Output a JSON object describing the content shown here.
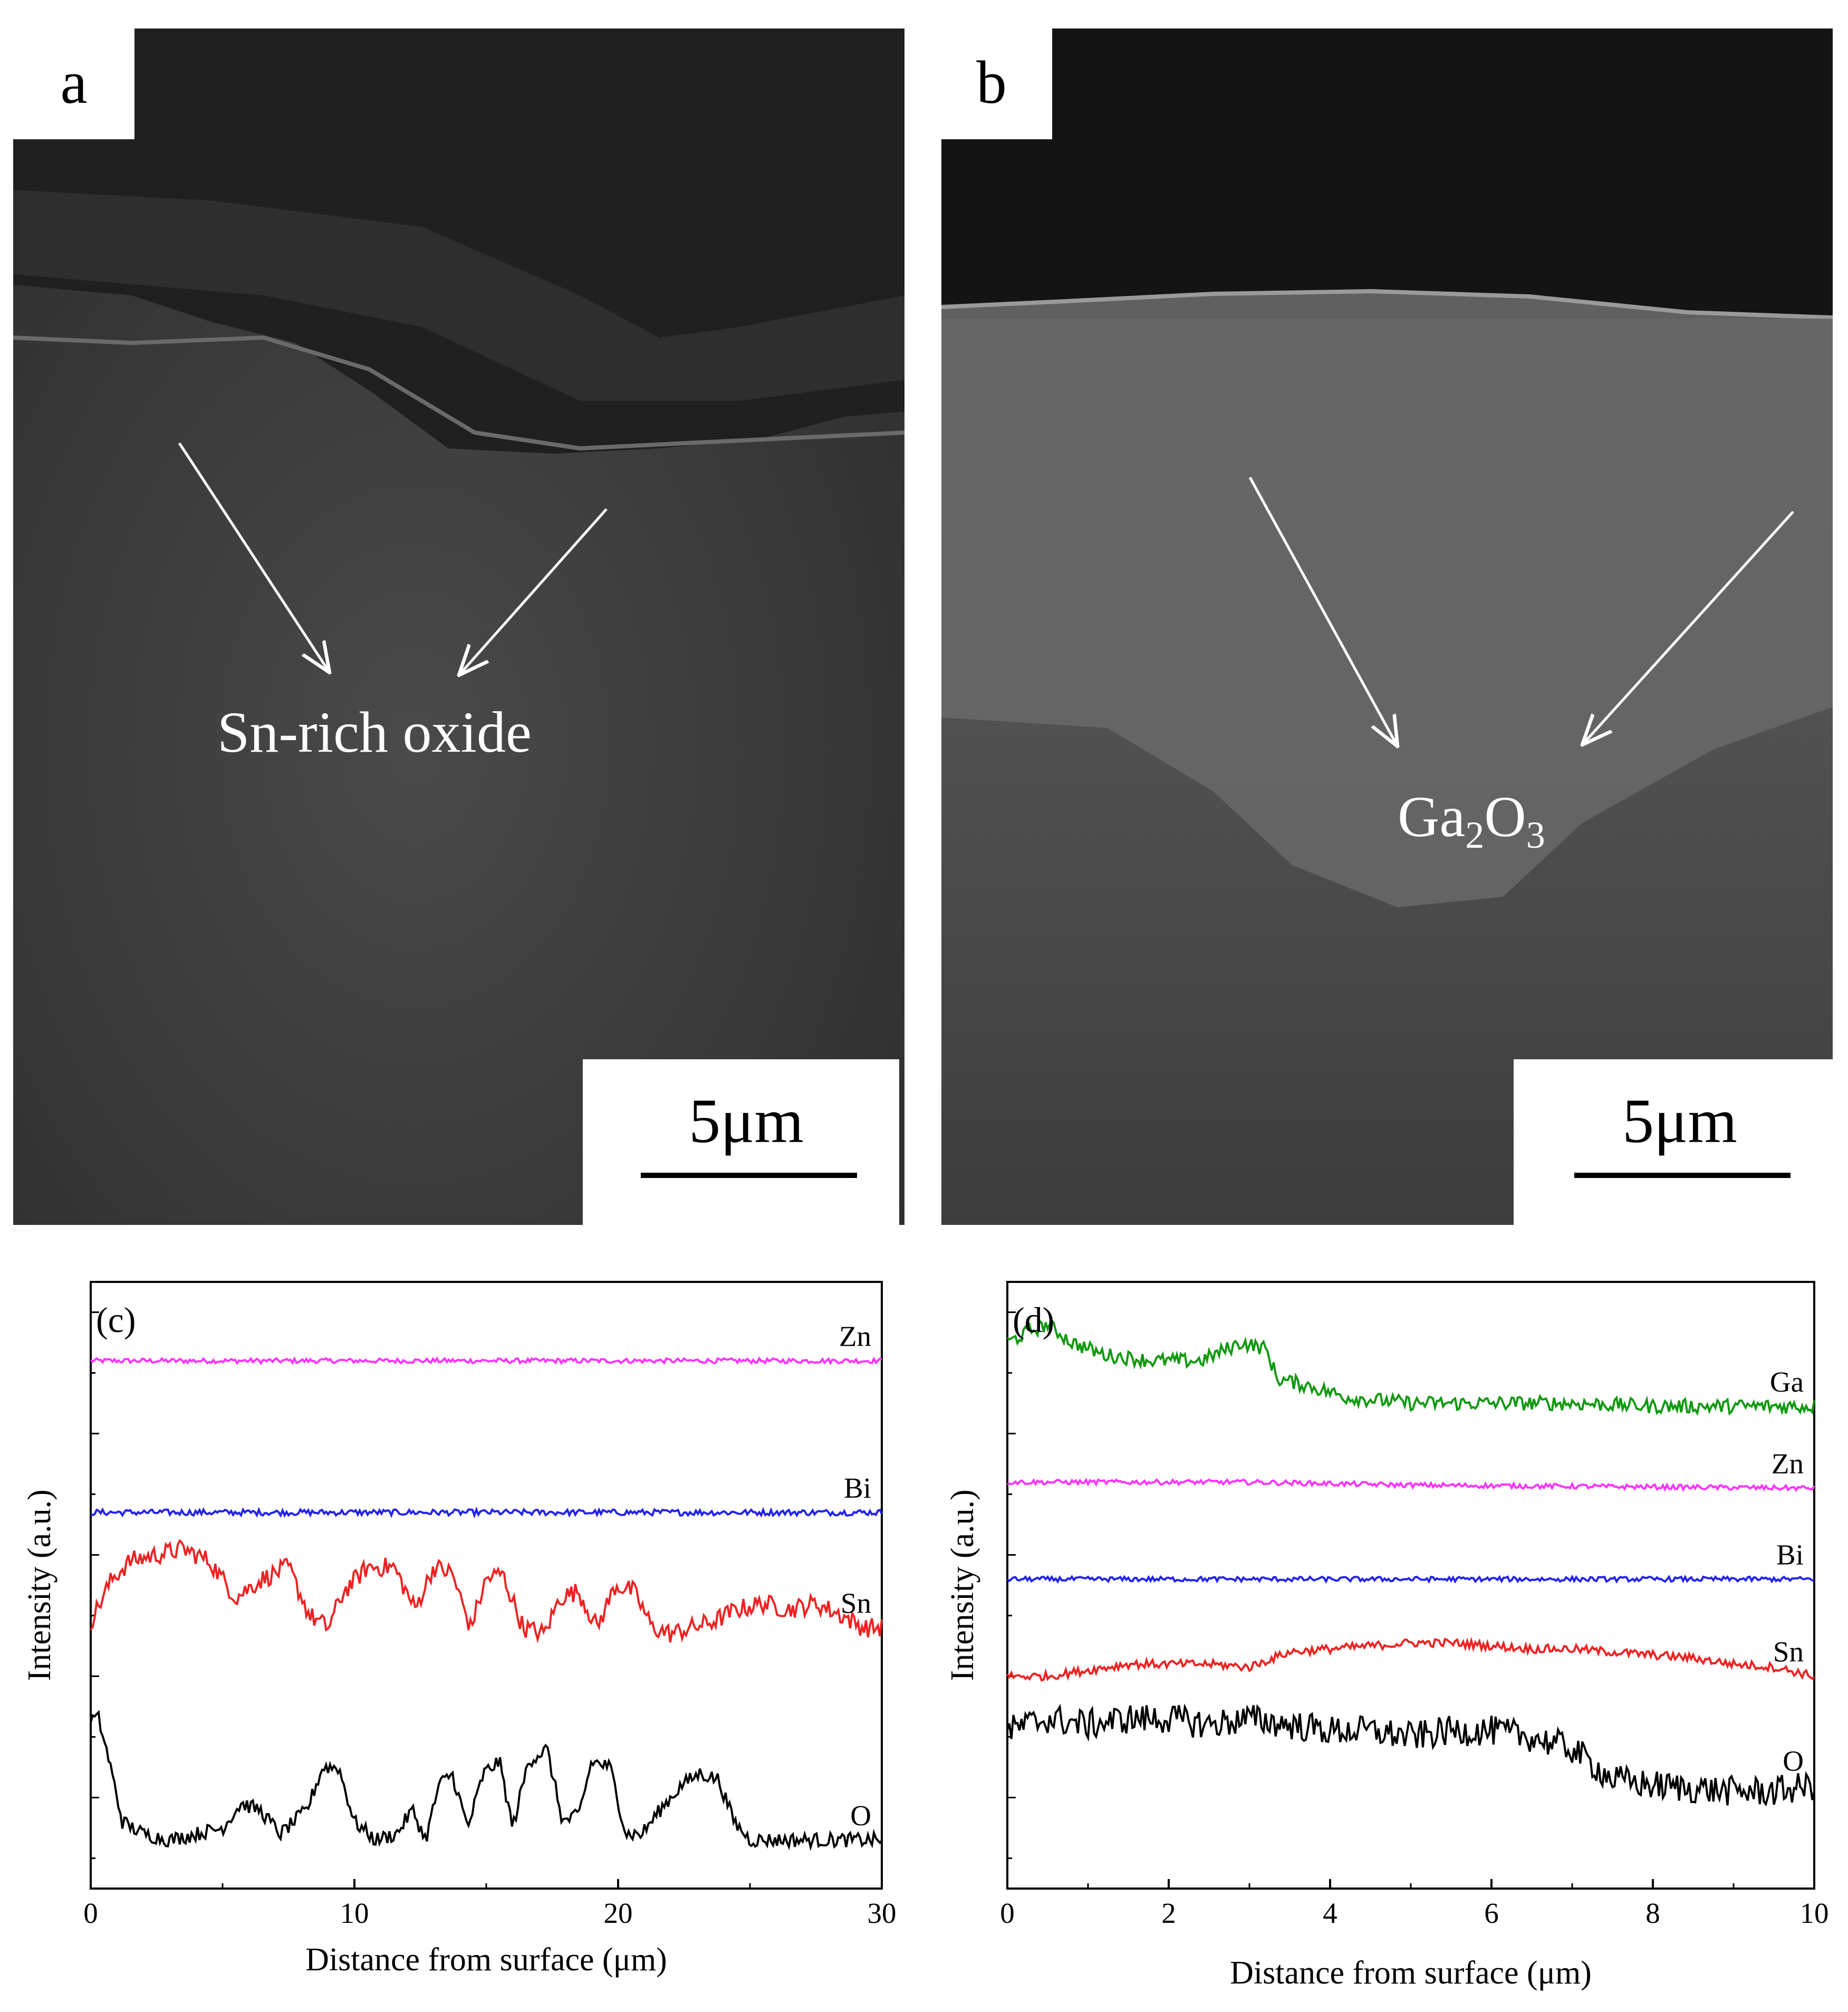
{
  "panels": {
    "a": {
      "label": "a",
      "annotation": "Sn-rich oxide",
      "scale_bar": "5μm"
    },
    "b": {
      "label": "b",
      "annotation_base": "Ga",
      "annotation_sub1": "2",
      "annotation_mid": "O",
      "annotation_sub2": "3",
      "scale_bar": "5μm"
    }
  },
  "colors": {
    "Zn": "#ff33ff",
    "Bi": "#2222ee",
    "Sn": "#ee2222",
    "O": "#000000",
    "Ga": "#119911"
  },
  "chart_data": [
    {
      "type": "line",
      "panel_label": "(c)",
      "xlabel": "Distance from surface (μm)",
      "ylabel": "Intensity (a.u.)",
      "xlim": [
        0,
        30
      ],
      "xticks": [
        "0",
        "10",
        "20",
        "30"
      ],
      "y_tick_labels": "none",
      "series": [
        {
          "name": "Zn",
          "x": [
            0,
            30
          ],
          "values": [
            9.2,
            9.2
          ]
        },
        {
          "name": "Bi",
          "x": [
            0,
            30
          ],
          "values": [
            6.7,
            6.7
          ]
        },
        {
          "name": "Sn",
          "x": [
            0,
            0.8,
            1.5,
            2.5,
            3.5,
            4.5,
            5.5,
            6.5,
            7.5,
            8.3,
            9.0,
            9.6,
            10.5,
            11.5,
            12.3,
            13.0,
            13.7,
            14.4,
            15.0,
            15.6,
            16.4,
            17.2,
            17.8,
            18.5,
            19.2,
            19.9,
            20.6,
            21.3,
            22.0,
            22.8,
            23.6,
            24.5,
            25.5,
            26.5,
            27.5,
            28.5,
            29.3,
            30
          ],
          "values": [
            4.9,
            5.6,
            5.9,
            6.0,
            6.1,
            5.9,
            5.3,
            5.6,
            5.8,
            5.0,
            4.8,
            5.4,
            5.8,
            5.8,
            5.1,
            5.8,
            5.7,
            4.8,
            5.6,
            5.7,
            4.8,
            4.7,
            5.3,
            5.4,
            4.8,
            5.5,
            5.4,
            4.8,
            4.7,
            4.8,
            4.9,
            5.1,
            5.2,
            5.1,
            5.2,
            5.0,
            4.8,
            4.8
          ]
        },
        {
          "name": "O",
          "x": [
            0,
            0.3,
            0.7,
            1.2,
            2.0,
            3.0,
            4.0,
            5.0,
            5.7,
            6.4,
            7.2,
            8.2,
            8.8,
            9.4,
            10.0,
            10.8,
            11.6,
            12.2,
            12.7,
            13.2,
            13.7,
            14.3,
            14.9,
            15.5,
            16.0,
            16.6,
            17.3,
            17.9,
            18.5,
            19.0,
            19.7,
            20.3,
            20.9,
            21.6,
            22.4,
            23.1,
            23.8,
            24.4,
            25.0,
            26.0,
            28.0,
            30.0
          ],
          "values": [
            3.3,
            3.3,
            2.6,
            1.6,
            1.4,
            1.3,
            1.4,
            1.5,
            1.9,
            1.8,
            1.4,
            1.8,
            2.5,
            2.5,
            1.6,
            1.3,
            1.4,
            1.8,
            1.3,
            2.2,
            2.4,
            1.5,
            2.4,
            2.6,
            1.5,
            2.6,
            2.8,
            1.6,
            1.7,
            2.6,
            2.5,
            1.4,
            1.4,
            1.8,
            2.2,
            2.4,
            2.3,
            1.6,
            1.3,
            1.3,
            1.3,
            1.3
          ]
        }
      ]
    },
    {
      "type": "line",
      "panel_label": "(d)",
      "xlabel": "Distance from surface (μm)",
      "ylabel": "Intensity (a.u.)",
      "xlim": [
        0,
        10
      ],
      "xticks": [
        "0",
        "2",
        "4",
        "6",
        "8",
        "10"
      ],
      "y_tick_labels": "none",
      "series": [
        {
          "name": "Ga",
          "x": [
            0,
            0.3,
            0.5,
            0.8,
            1.2,
            1.8,
            2.4,
            2.9,
            3.2,
            3.35,
            3.7,
            4.2,
            5.0,
            6.0,
            7.0,
            8.0,
            9.0,
            10.0
          ],
          "values": [
            9.5,
            9.7,
            9.8,
            9.5,
            9.3,
            9.2,
            9.2,
            9.5,
            9.4,
            8.9,
            8.8,
            8.6,
            8.5,
            8.5,
            8.5,
            8.45,
            8.45,
            8.45
          ]
        },
        {
          "name": "Zn",
          "x": [
            0,
            3,
            5,
            10
          ],
          "values": [
            7.2,
            7.2,
            7.15,
            7.1
          ]
        },
        {
          "name": "Bi",
          "x": [
            0,
            10
          ],
          "values": [
            5.6,
            5.6
          ]
        },
        {
          "name": "Sn",
          "x": [
            0,
            0.5,
            1.0,
            1.5,
            2.0,
            2.5,
            3.0,
            3.5,
            4.0,
            4.5,
            5.0,
            5.5,
            6.0,
            6.5,
            7.0,
            7.5,
            8.0,
            8.5,
            9.0,
            9.5,
            10.0
          ],
          "values": [
            4.0,
            4.0,
            4.1,
            4.2,
            4.2,
            4.2,
            4.15,
            4.4,
            4.45,
            4.5,
            4.55,
            4.55,
            4.5,
            4.45,
            4.45,
            4.4,
            4.35,
            4.3,
            4.2,
            4.15,
            4.0
          ]
        },
        {
          "name": "O",
          "x": [
            0,
            0.5,
            1.0,
            1.5,
            2.0,
            2.5,
            3.0,
            3.5,
            4.0,
            4.5,
            5.0,
            5.5,
            6.0,
            6.5,
            7.0,
            7.5,
            8.0,
            8.5,
            9.0,
            9.5,
            10.0
          ],
          "values": [
            3.1,
            3.3,
            3.2,
            3.3,
            3.3,
            3.2,
            3.3,
            3.2,
            3.1,
            3.1,
            3.0,
            3.1,
            3.1,
            3.0,
            2.8,
            2.3,
            2.2,
            2.15,
            2.1,
            2.1,
            2.2
          ]
        }
      ]
    }
  ]
}
